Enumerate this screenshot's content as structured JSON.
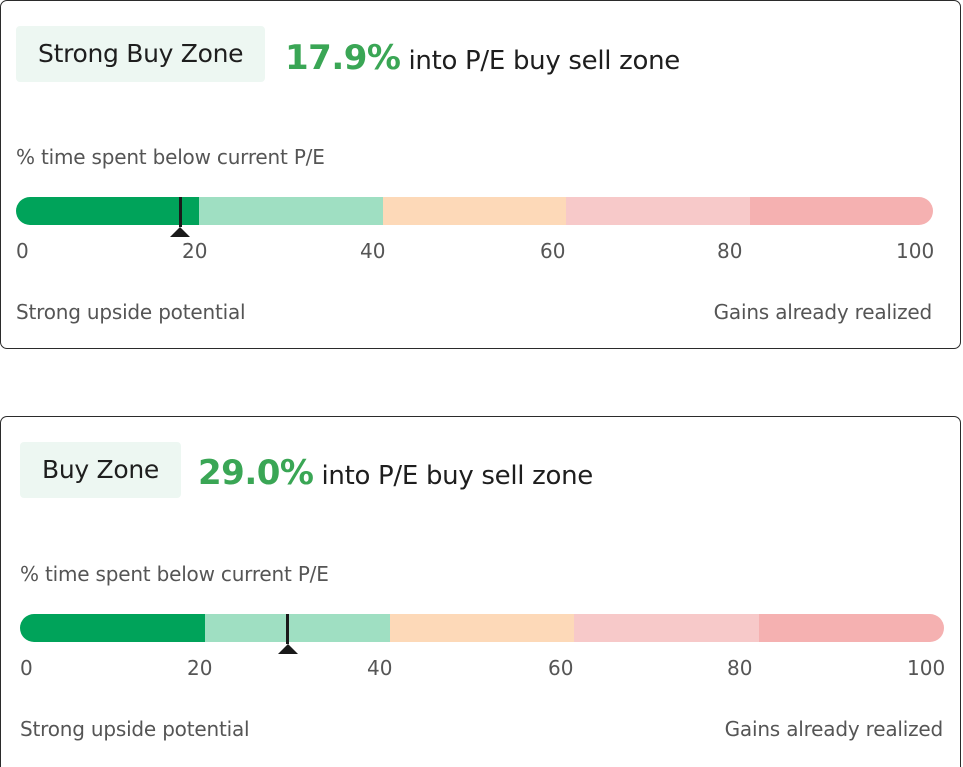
{
  "colors": {
    "segments": [
      "#00a35a",
      "#9fdfc2",
      "#fdd9b8",
      "#f7c9c9",
      "#f5b1b1"
    ],
    "percent_text": "#3aa655",
    "badge_bg": "#edf7f2"
  },
  "cards": [
    {
      "zone_label": "Strong Buy Zone",
      "percent": "17.9%",
      "headline_suffix": "into P/E buy sell zone",
      "subtitle": "% time spent below current P/E",
      "marker_value": 17.9,
      "ticks": [
        "0",
        "20",
        "40",
        "60",
        "80",
        "100"
      ],
      "left_caption": "Strong upside potential",
      "right_caption": "Gains already realized"
    },
    {
      "zone_label": "Buy Zone",
      "percent": "29.0%",
      "headline_suffix": "into P/E buy sell zone",
      "subtitle": "% time spent below current P/E",
      "marker_value": 29.0,
      "ticks": [
        "0",
        "20",
        "40",
        "60",
        "80",
        "100"
      ],
      "left_caption": "Strong upside potential",
      "right_caption": "Gains already realized"
    }
  ]
}
